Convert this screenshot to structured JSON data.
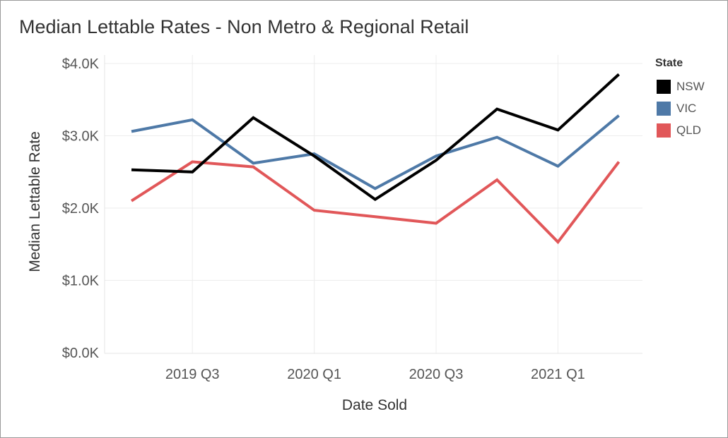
{
  "chart_data": {
    "type": "line",
    "title": "Median Lettable Rates - Non Metro & Regional Retail",
    "xlabel": "Date Sold",
    "ylabel": "Median Lettable Rate",
    "x": [
      "2019 Q2",
      "2019 Q3",
      "2019 Q4",
      "2020 Q1",
      "2020 Q2",
      "2020 Q3",
      "2020 Q4",
      "2021 Q1",
      "2021 Q2"
    ],
    "x_tick_labels": [
      "2019 Q3",
      "2020 Q1",
      "2020 Q3",
      "2021 Q1"
    ],
    "y_tick_labels": [
      "$0.0K",
      "$1.0K",
      "$2.0K",
      "$3.0K",
      "$4.0K"
    ],
    "ylim": [
      0,
      4000
    ],
    "grid": true,
    "legend": {
      "title": "State",
      "position": "right"
    },
    "series": [
      {
        "name": "NSW",
        "color": "#000000",
        "values": [
          2530,
          2500,
          3250,
          2720,
          2120,
          2660,
          3370,
          3080,
          3850
        ]
      },
      {
        "name": "VIC",
        "color": "#4e79a7",
        "values": [
          3060,
          3220,
          2620,
          2750,
          2270,
          2720,
          2980,
          2580,
          3280
        ]
      },
      {
        "name": "QLD",
        "color": "#e15759",
        "values": [
          2100,
          2640,
          2570,
          1970,
          1880,
          1790,
          2390,
          1530,
          2640
        ]
      }
    ]
  }
}
